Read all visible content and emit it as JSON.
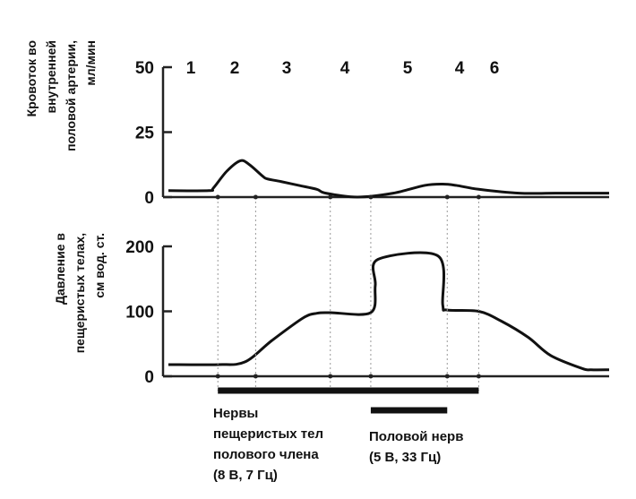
{
  "chart_data": [
    {
      "type": "line",
      "ylabel": "Кровоток во внутренней половой артерии, мл/мин",
      "ylabel_lines": [
        "Кровоток во",
        "внутренней",
        "половой артерии,",
        "мл/мин"
      ],
      "ylim": [
        0,
        50
      ],
      "yticks": [
        "50",
        "25",
        "0"
      ],
      "phases": [
        "1",
        "2",
        "3",
        "4",
        "5",
        "4",
        "6"
      ],
      "series": [
        {
          "x": [
            0,
            45,
            50,
            65,
            80,
            90,
            105,
            110,
            125,
            145,
            165,
            175,
            210,
            250,
            285,
            305,
            320,
            345,
            390,
            430,
            490
          ],
          "values": [
            2.5,
            2.5,
            3.5,
            10,
            14,
            12.5,
            8,
            7,
            6,
            4.5,
            3,
            1.5,
            0,
            1.5,
            4.5,
            5,
            4.5,
            3,
            1.5,
            1.5,
            1.5
          ]
        }
      ]
    },
    {
      "type": "line",
      "ylabel": "Давление в пещеристых телах, см вод. ст.",
      "ylabel_lines": [
        "Давление в",
        "пещеристых телах,",
        "см вод. ст."
      ],
      "ylim": [
        0,
        200
      ],
      "yticks": [
        "200",
        "100",
        "0"
      ],
      "series": [
        {
          "x": [
            0,
            55,
            85,
            115,
            150,
            165,
            180,
            225,
            230,
            233,
            300,
            305,
            310,
            345,
            370,
            400,
            425,
            460,
            470,
            490
          ],
          "values": [
            18,
            18,
            22,
            55,
            90,
            97,
            98,
            98,
            140,
            180,
            185,
            110,
            102,
            100,
            85,
            60,
            32,
            12,
            10,
            10
          ]
        }
      ],
      "stimuli": [
        {
          "label_lines": [
            "Нервы",
            "пещеристых тел",
            "полового члена",
            "(8 В, 7 Гц)"
          ],
          "x_start": 55,
          "x_end": 345
        },
        {
          "label_lines": [
            "Половой нерв",
            "(5 В, 33 Гц)"
          ],
          "x_start": 225,
          "x_end": 310
        }
      ],
      "markers_x": [
        55,
        97,
        180,
        225,
        310,
        345
      ]
    }
  ]
}
